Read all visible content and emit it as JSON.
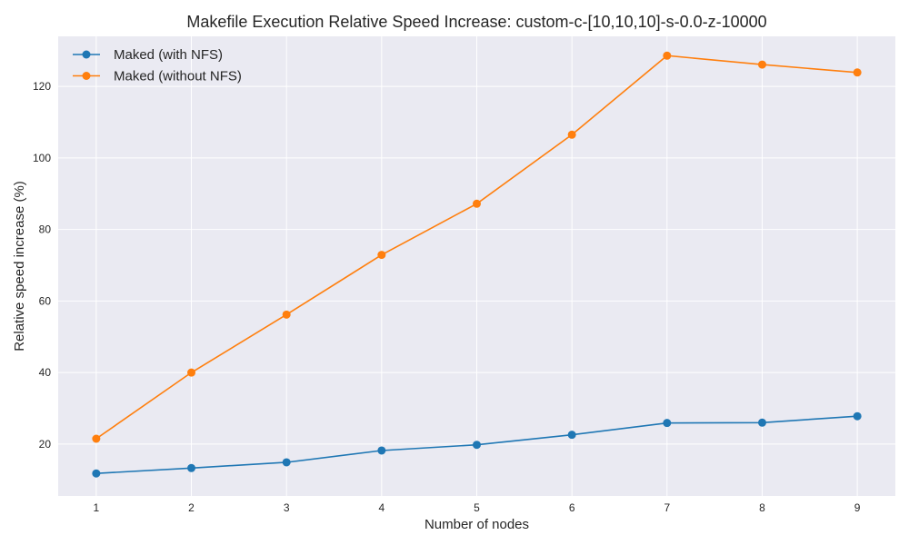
{
  "chart_data": {
    "type": "line",
    "title": "Makefile Execution Relative Speed Increase: custom-c-[10,10,10]-s-0.0-z-10000",
    "xlabel": "Number of nodes",
    "ylabel": "Relative speed increase (%)",
    "x": [
      1,
      2,
      3,
      4,
      5,
      6,
      7,
      8,
      9
    ],
    "xlim": [
      0.6,
      9.4
    ],
    "ylim": [
      5.5,
      134
    ],
    "xticks": [
      1,
      2,
      3,
      4,
      5,
      6,
      7,
      8,
      9
    ],
    "yticks": [
      20,
      40,
      60,
      80,
      100,
      120
    ],
    "grid": true,
    "legend_position": "top-left",
    "series": [
      {
        "name": "Maked (with NFS)",
        "color": "#1f77b4",
        "values": [
          11.8,
          13.3,
          14.9,
          18.2,
          19.8,
          22.6,
          25.9,
          26.0,
          27.8
        ]
      },
      {
        "name": "Maked (without NFS)",
        "color": "#ff7f0e",
        "values": [
          21.5,
          40.0,
          56.2,
          72.9,
          87.2,
          106.5,
          128.6,
          126.1,
          123.9
        ]
      }
    ]
  }
}
